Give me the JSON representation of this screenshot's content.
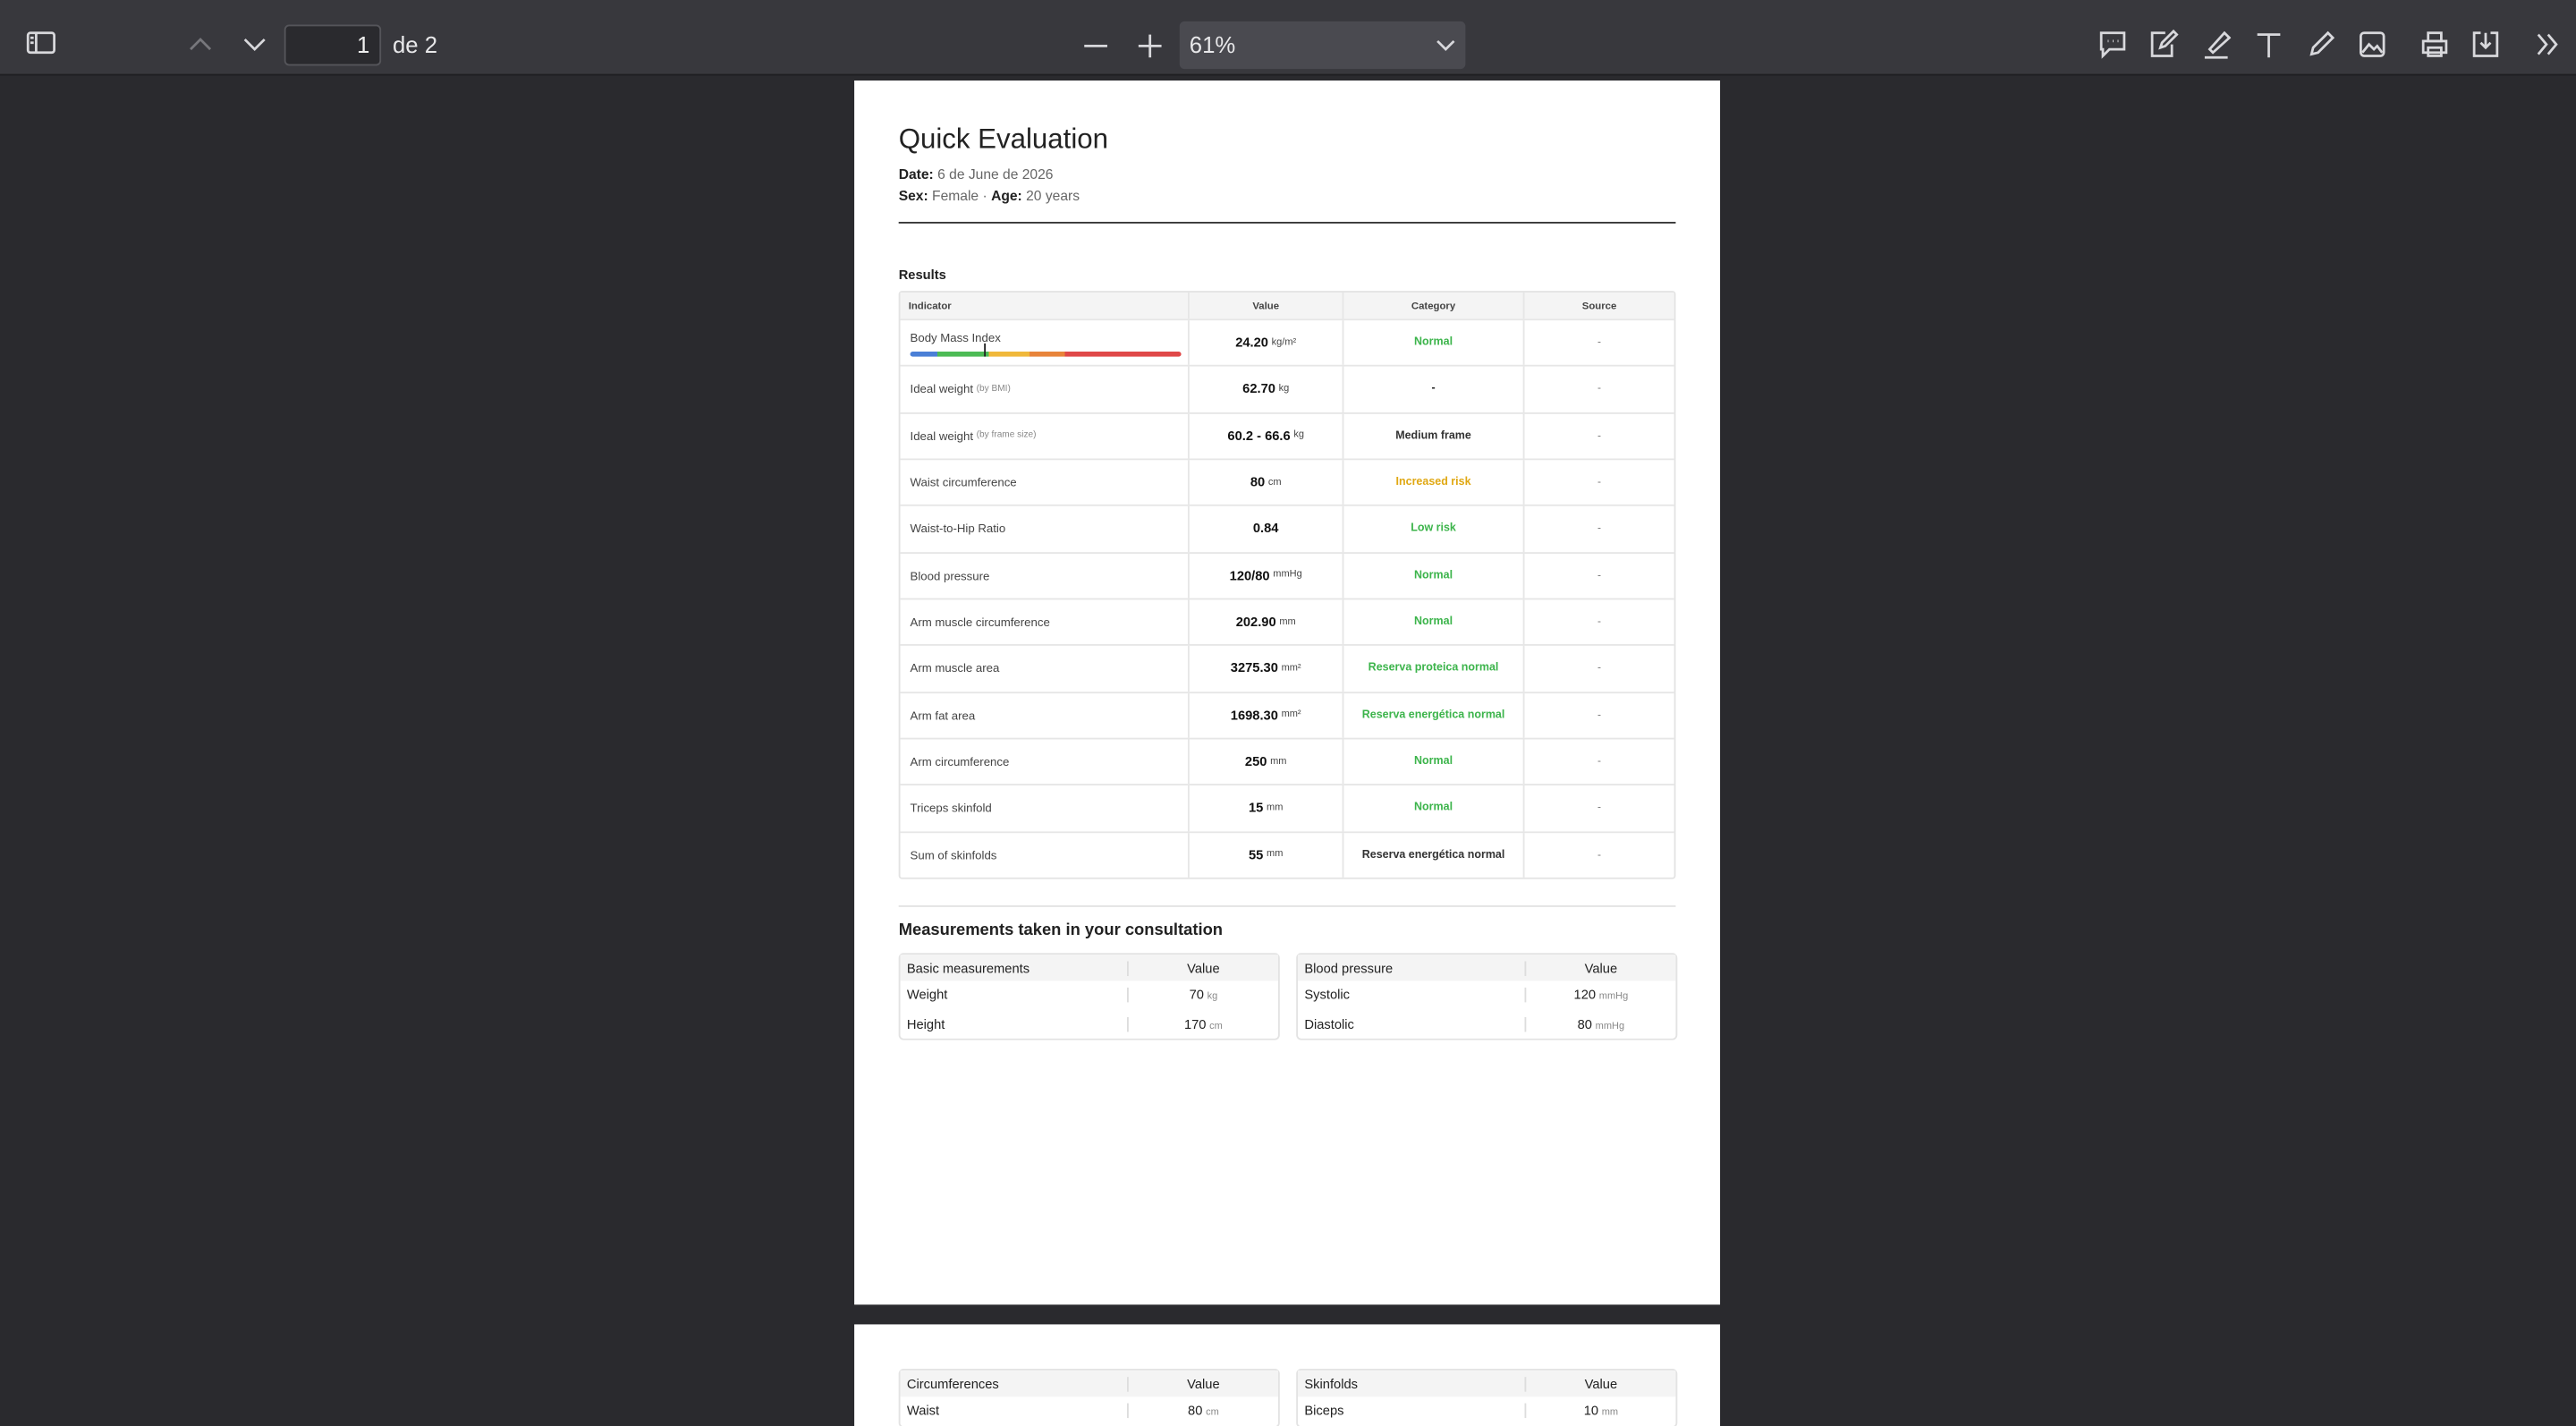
{
  "toolbar": {
    "page_number": "1",
    "page_count_label": "de 2",
    "zoom": "61%"
  },
  "page1": {
    "title": "Quick Evaluation",
    "date_label": "Date:",
    "date": "6 de June de 2026",
    "sex_label": "Sex:",
    "sex": "Female",
    "separator": "·",
    "age_label": "Age:",
    "age": "20 years",
    "results": {
      "heading": "Results",
      "columns": [
        "Indicator",
        "Value",
        "Category",
        "Source"
      ],
      "rows": [
        {
          "indicator": "Body Mass Index",
          "value": "24.20",
          "unit": "kg/m²",
          "category": "Normal",
          "category_color": "#3cb44b",
          "source": "-"
        },
        {
          "indicator": "Ideal weight",
          "note": "(by BMI)",
          "value": "62.70",
          "unit": "kg",
          "category": "-",
          "category_color": "#222222",
          "source": "-"
        },
        {
          "indicator": "Ideal weight",
          "note": "(by frame size)",
          "value": "60.2 - 66.6",
          "unit": "kg",
          "category": "Medium frame",
          "category_color": "#333333",
          "source": "-"
        },
        {
          "indicator": "Waist circumference",
          "value": "80",
          "unit": "cm",
          "category": "Increased risk",
          "category_color": "#e0a813",
          "source": "-"
        },
        {
          "indicator": "Waist-to-Hip Ratio",
          "value": "0.84",
          "category": "Low risk",
          "category_color": "#3cb44b",
          "source": "-"
        },
        {
          "indicator": "Blood pressure",
          "value": "120/80",
          "unit": "mmHg",
          "category": "Normal",
          "category_color": "#3cb44b",
          "source": "-"
        },
        {
          "indicator": "Arm muscle circumference",
          "value": "202.90",
          "unit": "mm",
          "category": "Normal",
          "category_color": "#3cb44b",
          "source": "-"
        },
        {
          "indicator": "Arm muscle area",
          "value": "3275.30",
          "unit": "mm²",
          "category": "Reserva proteica normal",
          "category_color": "#3cb44b",
          "source": "-"
        },
        {
          "indicator": "Arm fat area",
          "value": "1698.30",
          "unit": "mm²",
          "category": "Reserva energética normal",
          "category_color": "#3cb44b",
          "source": "-"
        },
        {
          "indicator": "Arm circumference",
          "value": "250",
          "unit": "mm",
          "category": "Normal",
          "category_color": "#3cb44b",
          "source": "-"
        },
        {
          "indicator": "Triceps skinfold",
          "value": "15",
          "unit": "mm",
          "category": "Normal",
          "category_color": "#3cb44b",
          "source": "-"
        },
        {
          "indicator": "Sum of skinfolds",
          "value": "55",
          "unit": "mm",
          "category": "Reserva energética normal",
          "category_color": "#333333",
          "source": "-"
        }
      ]
    },
    "measurements": {
      "heading": "Measurements taken in your consultation",
      "tables": [
        {
          "columns": [
            "Basic measurements",
            "Value"
          ],
          "rows": [
            {
              "label": "Weight",
              "value": "70",
              "unit": "kg"
            },
            {
              "label": "Height",
              "value": "170",
              "unit": "cm"
            }
          ]
        },
        {
          "columns": [
            "Blood pressure",
            "Value"
          ],
          "rows": [
            {
              "label": "Systolic",
              "value": "120",
              "unit": "mmHg"
            },
            {
              "label": "Diastolic",
              "value": "80",
              "unit": "mmHg"
            }
          ]
        }
      ]
    }
  },
  "page2": {
    "tables": [
      {
        "columns": [
          "Circumferences",
          "Value"
        ],
        "rows": [
          {
            "label": "Waist",
            "value": "80",
            "unit": "cm"
          }
        ]
      },
      {
        "columns": [
          "Skinfolds",
          "Value"
        ],
        "rows": [
          {
            "label": "Biceps",
            "value": "10",
            "unit": "mm"
          }
        ]
      }
    ]
  }
}
